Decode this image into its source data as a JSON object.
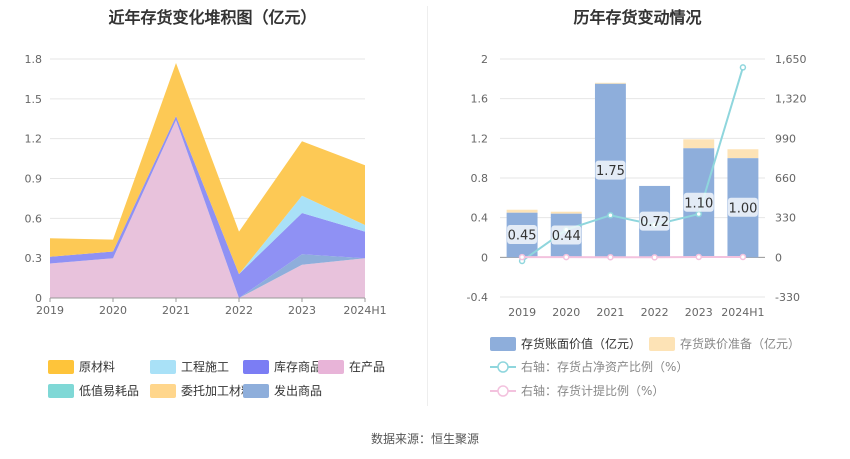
{
  "left_chart": {
    "title": "近年存货变化堆积图（亿元）",
    "chart_data": {
      "type": "area",
      "stacked": true,
      "categories": [
        "2019",
        "2020",
        "2021",
        "2022",
        "2023",
        "2024H1"
      ],
      "ylim": [
        0,
        1.8
      ],
      "yticks": [
        "0",
        "0.3",
        "0.6",
        "0.9",
        "1.2",
        "1.5",
        "1.8"
      ],
      "series": [
        {
          "name": "在产品",
          "color": "#e8c2dc",
          "values": [
            0.26,
            0.3,
            1.34,
            0.0,
            0.25,
            0.3
          ]
        },
        {
          "name": "发出商品",
          "color": "#8eaedb",
          "values": [
            0.0,
            0.0,
            0.0,
            0.0,
            0.08,
            0.0
          ]
        },
        {
          "name": "低值易耗品",
          "color": "#7fd8d6",
          "values": [
            0.0,
            0.0,
            0.0,
            0.0,
            0.0,
            0.0
          ]
        },
        {
          "name": "库存商品",
          "color": "#8f91f4",
          "values": [
            0.05,
            0.05,
            0.03,
            0.18,
            0.31,
            0.2
          ]
        },
        {
          "name": "工程施工",
          "color": "#a9e1f7",
          "values": [
            0.0,
            0.0,
            0.0,
            0.0,
            0.13,
            0.05
          ]
        },
        {
          "name": "委托加工材料",
          "color": "#ffd280",
          "values": [
            0.0,
            0.0,
            0.0,
            0.0,
            0.0,
            0.0
          ]
        },
        {
          "name": "原材料",
          "color": "#fdc955",
          "values": [
            0.14,
            0.09,
            0.4,
            0.32,
            0.41,
            0.45
          ]
        }
      ],
      "legend": [
        {
          "name": "原材料",
          "color": "#fec43a"
        },
        {
          "name": "工程施工",
          "color": "#a9e1f7"
        },
        {
          "name": "库存商品",
          "color": "#7b7df4"
        },
        {
          "name": "在产品",
          "color": "#e8b4d8"
        },
        {
          "name": "低值易耗品",
          "color": "#7fd8d6"
        },
        {
          "name": "委托加工材料",
          "color": "#ffd68c"
        },
        {
          "name": "发出商品",
          "color": "#8eaedb"
        }
      ]
    }
  },
  "right_chart": {
    "title": "历年存货变动情况",
    "chart_data": {
      "type": "bar",
      "categories": [
        "2019",
        "2020",
        "2021",
        "2022",
        "2023",
        "2024H1"
      ],
      "ylim": [
        -0.4,
        2
      ],
      "yticks": [
        "-0.4",
        "0",
        "0.4",
        "0.8",
        "1.2",
        "1.6",
        "2"
      ],
      "y2lim": [
        -330,
        1650
      ],
      "y2ticks": [
        "-330",
        "0",
        "330",
        "660",
        "990",
        "1,320",
        "1,650"
      ],
      "series": [
        {
          "name": "存货账面价值（亿元）",
          "kind": "bar",
          "color": "#8eaedb",
          "values": [
            0.45,
            0.44,
            1.75,
            0.72,
            1.1,
            1.0
          ],
          "labels": [
            "0.45",
            "0.44",
            "1.75",
            "0.72",
            "1.10",
            "1.00"
          ]
        },
        {
          "name": "存货跌价准备（亿元）",
          "kind": "bar",
          "color": "#fde3b6",
          "values": [
            0.03,
            0.02,
            0.01,
            0.0,
            0.09,
            0.09
          ]
        },
        {
          "name": "右轴：存货占净资产比例（%）",
          "kind": "line",
          "axis": "right",
          "color": "#8fd6dd",
          "values": [
            -30,
            230,
            350,
            270,
            360,
            1580
          ]
        },
        {
          "name": "右轴：存货计提比例（%）",
          "kind": "line",
          "axis": "right",
          "color": "#f3c2de",
          "values": [
            2,
            2,
            1,
            0,
            3,
            3
          ]
        }
      ]
    }
  },
  "footer": {
    "source": "数据来源：恒生聚源"
  }
}
